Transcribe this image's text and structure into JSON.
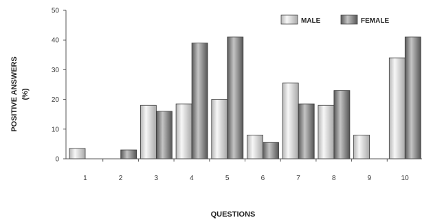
{
  "chart_data": {
    "type": "bar",
    "title": "",
    "xlabel": "QUESTIONS",
    "ylabel": [
      "POSITIVE ANSWERS",
      "(%)"
    ],
    "ylim": [
      0,
      50
    ],
    "yticks": [
      0,
      10,
      20,
      30,
      40,
      50
    ],
    "grid": false,
    "legend_position": "top-right",
    "categories": [
      "1",
      "2",
      "3",
      "4",
      "5",
      "6",
      "7",
      "8",
      "9",
      "10"
    ],
    "series": [
      {
        "name": "MALE",
        "color": "#d9d9d9",
        "values": [
          3.5,
          0,
          18,
          18.5,
          20,
          8,
          25.5,
          18,
          8,
          34
        ]
      },
      {
        "name": "FEMALE",
        "color": "#8f8f8f",
        "values": [
          0,
          3,
          16,
          39,
          41,
          5.5,
          18.5,
          23,
          0,
          41
        ]
      }
    ]
  }
}
